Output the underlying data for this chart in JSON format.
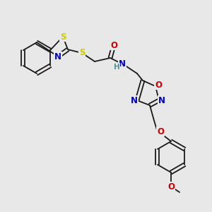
{
  "background_color": "#e8e8e8",
  "bond_color": "#1a1a1a",
  "colors": {
    "N": "#0000cc",
    "O": "#cc0000",
    "S": "#cccc00",
    "H": "#4a9a9a",
    "C": "#1a1a1a"
  },
  "font_size": 7.5,
  "bond_width": 1.3
}
